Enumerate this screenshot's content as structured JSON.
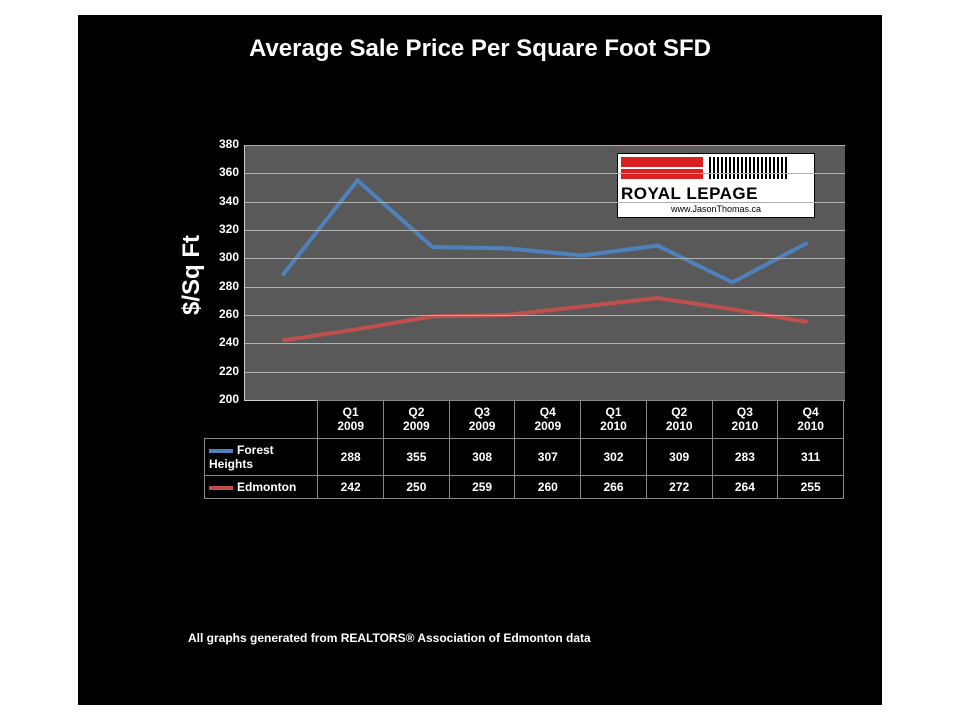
{
  "title": {
    "text": "Average Sale Price Per Square Foot SFD",
    "fontsize": 24
  },
  "ylabel": {
    "text": "$/Sq Ft",
    "fontsize": 24
  },
  "footnote": {
    "text": "All graphs generated from REALTORS® Association of Edmonton data",
    "fontsize": 12
  },
  "chart": {
    "type": "line",
    "plot_bg": "#595959",
    "grid_color": "#b0b0b0",
    "text_color": "#ffffff",
    "ylim": [
      200,
      380
    ],
    "ytick_step": 20,
    "ytick_fontsize": 12,
    "xtick_fontsize": 12,
    "line_width": 4,
    "categories": [
      "Q1 2009",
      "Q2 2009",
      "Q3 2009",
      "Q4 2009",
      "Q1 2010",
      "Q2 2010",
      "Q3 2010",
      "Q4 2010"
    ],
    "categories_l1": [
      "Q1",
      "Q2",
      "Q3",
      "Q4",
      "Q1",
      "Q2",
      "Q3",
      "Q4"
    ],
    "categories_l2": [
      "2009",
      "2009",
      "2009",
      "2009",
      "2010",
      "2010",
      "2010",
      "2010"
    ],
    "series": [
      {
        "name": "Forest Heights",
        "color": "#4f81bd",
        "values": [
          288,
          355,
          308,
          307,
          302,
          309,
          283,
          311
        ]
      },
      {
        "name": "Edmonton",
        "color": "#c0504d",
        "values": [
          242,
          250,
          259,
          260,
          266,
          272,
          264,
          255
        ]
      }
    ]
  },
  "logo": {
    "line1": "ROYAL LEPAGE",
    "line2": "www.JasonThomas.ca"
  }
}
